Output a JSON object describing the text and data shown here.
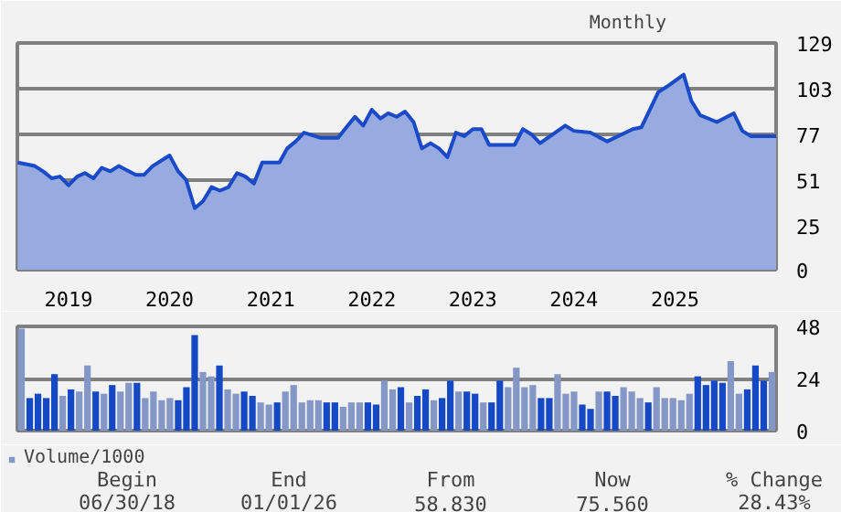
{
  "chart_data": [
    {
      "type": "area",
      "subtitle": "Monthly",
      "color": "#1a4ac8",
      "x": [
        "2018-07",
        "2018-09",
        "2018-10",
        "2018-11",
        "2018-12",
        "2019-01",
        "2019-02",
        "2019-03",
        "2019-04",
        "2019-05",
        "2019-06",
        "2019-07",
        "2019-09",
        "2019-10",
        "2019-11",
        "2020-01",
        "2020-02",
        "2020-03",
        "2020-04",
        "2020-05",
        "2020-06",
        "2020-07",
        "2020-08",
        "2020-09",
        "2020-10",
        "2020-11",
        "2020-12",
        "2021-01",
        "2021-02",
        "2021-03",
        "2021-04",
        "2021-05",
        "2021-07",
        "2021-09",
        "2021-10",
        "2021-11",
        "2021-12",
        "2022-01",
        "2022-02",
        "2022-03",
        "2022-04",
        "2022-05",
        "2022-06",
        "2022-07",
        "2022-08",
        "2022-09",
        "2022-10",
        "2022-11",
        "2022-12",
        "2023-01",
        "2023-02",
        "2023-03",
        "2023-05",
        "2023-06",
        "2023-07",
        "2023-08",
        "2023-09",
        "2023-12",
        "2024-01",
        "2024-03",
        "2024-05",
        "2024-08",
        "2024-09",
        "2024-11",
        "2024-12",
        "2025-02",
        "2025-03",
        "2025-04",
        "2025-06",
        "2025-08",
        "2025-09",
        "2025-10",
        "2026-01"
      ],
      "values": [
        61,
        59,
        56,
        52,
        53,
        48,
        53,
        55,
        52,
        58,
        56,
        59,
        54,
        54,
        59,
        65,
        56,
        51,
        35,
        39,
        47,
        45,
        47,
        55,
        53,
        49,
        61,
        61,
        61,
        69,
        73,
        78,
        75,
        75,
        81,
        87,
        82,
        91,
        86,
        89,
        87,
        90,
        84,
        69,
        72,
        69,
        64,
        78,
        76,
        80,
        80,
        71,
        71,
        71,
        80,
        77,
        72,
        82,
        79,
        78,
        73,
        80,
        81,
        101,
        104,
        111,
        96,
        88,
        84,
        89,
        79,
        76,
        76
      ],
      "xlim": [
        "2018-06-30",
        "2026-01-01"
      ],
      "xticks": [
        {
          "value": "2019-01-01",
          "label": "2019"
        },
        {
          "value": "2020-01-01",
          "label": "2020"
        },
        {
          "value": "2021-01-01",
          "label": "2021"
        },
        {
          "value": "2022-01-01",
          "label": "2022"
        },
        {
          "value": "2023-01-01",
          "label": "2023"
        },
        {
          "value": "2024-01-01",
          "label": "2024"
        },
        {
          "value": "2025-01-01",
          "label": "2025"
        }
      ],
      "ylim": [
        0,
        129
      ],
      "yticks": [
        0,
        25,
        51,
        77,
        103,
        129
      ],
      "grid": "y"
    },
    {
      "type": "bar",
      "categories": [
        null,
        null,
        null,
        null,
        null,
        null,
        null,
        null,
        null,
        null,
        null,
        null,
        null,
        null,
        null,
        null,
        null,
        null,
        null,
        null,
        null,
        null,
        null,
        null,
        null,
        null,
        null,
        null,
        null,
        null,
        null,
        null,
        null,
        null,
        null,
        null,
        null,
        null,
        null,
        null,
        null,
        null,
        null,
        null,
        null,
        null,
        null,
        null,
        null,
        null,
        null,
        null,
        null,
        null,
        null,
        null,
        null,
        null,
        null,
        null,
        null,
        null,
        null,
        null,
        null,
        null,
        null,
        null,
        null,
        null,
        null,
        null,
        null,
        null,
        null,
        null,
        null,
        null,
        null,
        null,
        null,
        null,
        null,
        null,
        null,
        null,
        null,
        null,
        null,
        null,
        null,
        null
      ],
      "series": [
        {
          "name": "Volume/1000",
          "color": "#8497c6",
          "values": [
            47,
            15,
            17,
            15,
            26,
            16,
            19,
            18,
            30,
            18,
            17,
            21,
            18,
            22,
            22,
            15,
            18,
            14,
            15,
            14,
            20,
            44,
            27,
            25,
            30,
            19,
            17,
            18,
            16,
            13,
            12,
            13,
            18,
            21,
            13,
            14,
            14,
            13,
            13,
            11,
            13,
            13,
            13,
            12,
            23,
            19,
            20,
            13,
            16,
            19,
            14,
            15,
            23,
            18,
            18,
            17,
            13,
            13,
            23,
            20,
            29,
            20,
            21,
            15,
            15,
            26,
            17,
            18,
            12,
            10,
            18,
            18,
            16,
            20,
            18,
            15,
            13,
            20,
            15,
            15,
            14,
            17,
            25,
            21,
            23,
            22,
            32,
            17,
            19,
            30,
            23,
            27
          ],
          "colors": [
            "#8497c6",
            "#1448c4",
            "#1448c4",
            "#1448c4",
            "#1448c4",
            "#8497c6",
            "#1448c4",
            "#8497c6",
            "#8497c6",
            "#1448c4",
            "#8497c6",
            "#1448c4",
            "#8497c6",
            "#8497c6",
            "#1448c4",
            "#8497c6",
            "#8497c6",
            "#8497c6",
            "#8497c6",
            "#1448c4",
            "#1448c4",
            "#1448c4",
            "#8497c6",
            "#8497c6",
            "#1448c4",
            "#8497c6",
            "#8497c6",
            "#1448c4",
            "#1448c4",
            "#8497c6",
            "#8497c6",
            "#1448c4",
            "#8497c6",
            "#8497c6",
            "#8497c6",
            "#8497c6",
            "#8497c6",
            "#1448c4",
            "#1448c4",
            "#8497c6",
            "#8497c6",
            "#8497c6",
            "#1448c4",
            "#1448c4",
            "#8497c6",
            "#8497c6",
            "#1448c4",
            "#8497c6",
            "#1448c4",
            "#1448c4",
            "#8497c6",
            "#1448c4",
            "#1448c4",
            "#8497c6",
            "#1448c4",
            "#1448c4",
            "#8497c6",
            "#1448c4",
            "#1448c4",
            "#8497c6",
            "#8497c6",
            "#8497c6",
            "#8497c6",
            "#1448c4",
            "#1448c4",
            "#8497c6",
            "#8497c6",
            "#8497c6",
            "#1448c4",
            "#1448c4",
            "#8497c6",
            "#1448c4",
            "#1448c4",
            "#8497c6",
            "#8497c6",
            "#8497c6",
            "#1448c4",
            "#8497c6",
            "#8497c6",
            "#8497c6",
            "#8497c6",
            "#8497c6",
            "#1448c4",
            "#1448c4",
            "#1448c4",
            "#1448c4",
            "#8497c6",
            "#8497c6",
            "#1448c4",
            "#1448c4",
            "#1448c4",
            "#8497c6"
          ]
        }
      ],
      "ylim": [
        0,
        48
      ],
      "yticks": [
        0,
        24,
        48
      ],
      "grid": "y",
      "legend": "bottom left",
      "tick_labels": "y",
      "annotations": [
        "Begin",
        "06/30/18",
        "End",
        "01/01/26",
        "From",
        "58.830",
        "Now",
        "75.560",
        "% Change",
        "28.43%"
      ]
    }
  ]
}
